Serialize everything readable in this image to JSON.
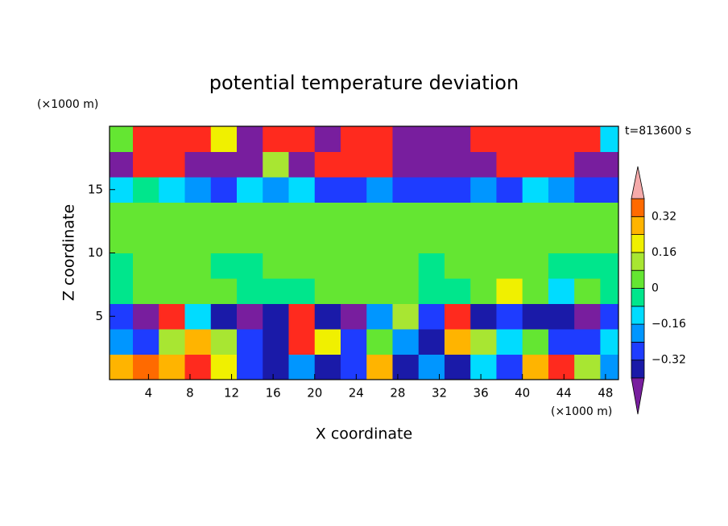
{
  "chart_data": {
    "type": "contour",
    "title": "potential temperature deviation",
    "x_label": "X coordinate",
    "y_label": "Z coordinate",
    "x_unit": "(×1000 m)",
    "y_unit": "(×1000 m)",
    "time_label": "t=813600 s",
    "xlim": [
      0.25,
      49.25
    ],
    "ylim": [
      0,
      20
    ],
    "xticks": [
      4,
      8,
      12,
      16,
      20,
      24,
      28,
      32,
      36,
      40,
      44,
      48
    ],
    "yticks": [
      5,
      10,
      15
    ],
    "x": [
      1.25,
      3.75,
      6.25,
      8.75,
      11.25,
      13.75,
      16.25,
      18.75,
      21.25,
      23.75,
      26.25,
      28.75,
      31.25,
      33.75,
      36.25,
      38.75,
      41.25,
      43.75,
      46.25,
      48.75
    ],
    "y": [
      1,
      3,
      5,
      7,
      9,
      11,
      13,
      15,
      17,
      19
    ],
    "z": [
      [
        0.3,
        0.35,
        0.25,
        0.4,
        0.2,
        -0.3,
        -0.35,
        -0.2,
        -0.4,
        -0.3,
        0.25,
        -0.35,
        -0.2,
        -0.35,
        -0.1,
        -0.3,
        0.3,
        0.4,
        0.1,
        -0.2
      ],
      [
        -0.2,
        -0.3,
        0.1,
        0.3,
        0.1,
        -0.25,
        -0.4,
        0.45,
        0.2,
        -0.3,
        0.05,
        -0.2,
        -0.35,
        0.3,
        0.1,
        -0.1,
        0.05,
        -0.3,
        -0.25,
        -0.1
      ],
      [
        -0.3,
        -0.45,
        0.45,
        -0.1,
        -0.35,
        -0.45,
        -0.4,
        0.45,
        -0.4,
        -0.45,
        -0.2,
        0.1,
        -0.3,
        0.45,
        -0.4,
        -0.3,
        -0.35,
        -0.4,
        -0.45,
        -0.3
      ],
      [
        -0.03,
        0.03,
        0.04,
        0.03,
        0.02,
        -0.02,
        -0.04,
        -0.03,
        0.03,
        0.02,
        0.03,
        0.04,
        -0.03,
        -0.02,
        0.05,
        0.2,
        0.04,
        -0.1,
        0.03,
        -0.04
      ],
      [
        -0.03,
        0.03,
        0.04,
        0.03,
        -0.02,
        -0.03,
        0.03,
        0.03,
        0.02,
        0.03,
        0.04,
        0.03,
        -0.02,
        0.03,
        0.04,
        0.03,
        0.03,
        -0.04,
        -0.03,
        -0.04
      ],
      [
        0.03,
        0.03,
        0.04,
        0.03,
        0.03,
        0.03,
        0.02,
        0.03,
        0.03,
        0.03,
        0.04,
        0.03,
        0.03,
        0.03,
        0.03,
        0.03,
        0.04,
        0.03,
        0.03,
        0.03
      ],
      [
        0.03,
        0.04,
        0.03,
        0.03,
        0.04,
        0.03,
        0.03,
        0.03,
        0.03,
        0.04,
        0.03,
        0.03,
        0.03,
        0.04,
        0.03,
        0.03,
        0.03,
        0.03,
        0.04,
        0.03
      ],
      [
        -0.1,
        -0.04,
        -0.12,
        -0.2,
        -0.25,
        -0.12,
        -0.2,
        -0.15,
        -0.3,
        -0.25,
        -0.2,
        -0.28,
        -0.3,
        -0.25,
        -0.2,
        -0.3,
        -0.12,
        -0.2,
        -0.25,
        -0.3
      ],
      [
        -0.45,
        0.45,
        0.45,
        -0.45,
        -0.45,
        -0.45,
        0.1,
        -0.45,
        0.45,
        0.45,
        0.45,
        -0.45,
        -0.45,
        -0.45,
        -0.45,
        0.45,
        0.45,
        0.45,
        -0.45,
        -0.45
      ],
      [
        0.05,
        0.45,
        0.45,
        0.45,
        0.2,
        -0.45,
        0.45,
        0.45,
        -0.45,
        0.45,
        0.45,
        -0.45,
        -0.45,
        -0.45,
        0.45,
        0.45,
        0.45,
        0.45,
        0.45,
        -0.1
      ]
    ],
    "levels": [
      -0.4,
      -0.32,
      -0.24,
      -0.16,
      -0.08,
      0,
      0.08,
      0.16,
      0.24,
      0.32,
      0.4
    ],
    "colors": [
      "#781e9e",
      "#1a1aa8",
      "#1e3cff",
      "#0096ff",
      "#00dcff",
      "#00e68c",
      "#64e632",
      "#a8e632",
      "#f0f000",
      "#ffb400",
      "#ff6a00",
      "#ff2a1e",
      "#f5aaaa"
    ],
    "cbar_ticks": [
      {
        "value": -0.32,
        "label": "−0.32"
      },
      {
        "value": -0.16,
        "label": "−0.16"
      },
      0,
      0.16,
      0.32
    ]
  }
}
